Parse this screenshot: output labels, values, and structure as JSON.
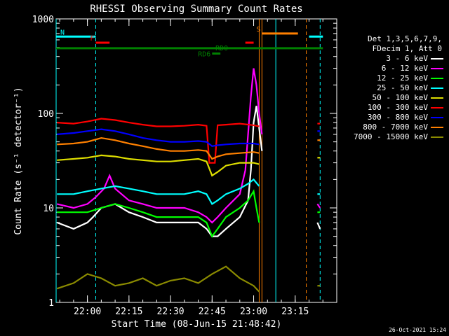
{
  "chart_data": {
    "type": "line",
    "title": "RHESSI Observing Summary Count Rates",
    "xlabel": "Start Time (08-Jun-15 21:48:42)",
    "ylabel": "Count Rate (s⁻¹ detector⁻¹)",
    "yscale": "log",
    "ylim": [
      1,
      1000
    ],
    "xlim": [
      "21:48:42",
      "23:30:00"
    ],
    "x_ticks": [
      "22:00",
      "22:15",
      "22:30",
      "22:45",
      "23:00",
      "23:15"
    ],
    "y_ticks": [
      "1",
      "10",
      "100",
      "1000"
    ],
    "timestamp": "26-Oct-2021 15:24",
    "legend_header": [
      "Det 1,3,5,6,7,9,",
      "FDecim 1, Att 0"
    ],
    "series": [
      {
        "name": "3 - 6 keV",
        "color": "#ffffff",
        "segments": [
          [
            [
              "21:49",
              7
            ],
            [
              "21:55",
              6
            ],
            [
              "22:00",
              7
            ],
            [
              "22:02",
              8
            ],
            [
              "22:05",
              10
            ],
            [
              "22:10",
              11
            ],
            [
              "22:15",
              9
            ],
            [
              "22:20",
              8
            ],
            [
              "22:25",
              7
            ],
            [
              "22:30",
              7
            ],
            [
              "22:35",
              7
            ],
            [
              "22:40",
              7
            ],
            [
              "22:43",
              6
            ],
            [
              "22:45",
              5
            ],
            [
              "22:47",
              5
            ],
            [
              "22:50",
              6
            ],
            [
              "22:55",
              8
            ],
            [
              "22:58",
              12
            ],
            [
              "22:59",
              25
            ],
            [
              "23:00",
              80
            ],
            [
              "23:01",
              120
            ],
            [
              "23:02",
              70
            ],
            [
              "23:03",
              40
            ]
          ],
          [
            [
              "23:23",
              7
            ],
            [
              "23:24",
              6
            ]
          ]
        ]
      },
      {
        "name": "6 - 12 keV",
        "color": "#ff00ff",
        "segments": [
          [
            [
              "21:49",
              11
            ],
            [
              "21:55",
              10
            ],
            [
              "22:00",
              11
            ],
            [
              "22:03",
              13
            ],
            [
              "22:06",
              16
            ],
            [
              "22:08",
              22
            ],
            [
              "22:10",
              16
            ],
            [
              "22:15",
              12
            ],
            [
              "22:20",
              11
            ],
            [
              "22:25",
              10
            ],
            [
              "22:30",
              10
            ],
            [
              "22:35",
              10
            ],
            [
              "22:40",
              9
            ],
            [
              "22:43",
              8
            ],
            [
              "22:45",
              7
            ],
            [
              "22:47",
              8
            ],
            [
              "22:50",
              10
            ],
            [
              "22:55",
              14
            ],
            [
              "22:57",
              25
            ],
            [
              "22:58",
              60
            ],
            [
              "22:59",
              150
            ],
            [
              "23:00",
              300
            ],
            [
              "23:01",
              200
            ],
            [
              "23:02",
              100
            ],
            [
              "23:03",
              60
            ]
          ],
          [
            [
              "23:23",
              11
            ],
            [
              "23:24",
              10
            ]
          ]
        ]
      },
      {
        "name": "12 - 25 keV",
        "color": "#00ff00",
        "segments": [
          [
            [
              "21:49",
              9
            ],
            [
              "21:55",
              9
            ],
            [
              "22:00",
              9
            ],
            [
              "22:05",
              10
            ],
            [
              "22:10",
              11
            ],
            [
              "22:15",
              10
            ],
            [
              "22:20",
              9
            ],
            [
              "22:25",
              8
            ],
            [
              "22:30",
              8
            ],
            [
              "22:35",
              8
            ],
            [
              "22:40",
              8
            ],
            [
              "22:43",
              7
            ],
            [
              "22:45",
              5
            ],
            [
              "22:47",
              6
            ],
            [
              "22:50",
              8
            ],
            [
              "22:55",
              10
            ],
            [
              "22:58",
              12
            ],
            [
              "23:00",
              15
            ],
            [
              "23:01",
              10
            ],
            [
              "23:02",
              7
            ]
          ],
          [
            [
              "23:23",
              9
            ],
            [
              "23:24",
              9
            ]
          ]
        ]
      },
      {
        "name": "25 - 50 keV",
        "color": "#00ffff",
        "segments": [
          [
            [
              "21:49",
              14
            ],
            [
              "21:55",
              14
            ],
            [
              "22:00",
              15
            ],
            [
              "22:05",
              16
            ],
            [
              "22:10",
              17
            ],
            [
              "22:15",
              16
            ],
            [
              "22:20",
              15
            ],
            [
              "22:25",
              14
            ],
            [
              "22:30",
              14
            ],
            [
              "22:35",
              14
            ],
            [
              "22:40",
              15
            ],
            [
              "22:43",
              14
            ],
            [
              "22:45",
              11
            ],
            [
              "22:47",
              12
            ],
            [
              "22:50",
              14
            ],
            [
              "22:55",
              16
            ],
            [
              "22:58",
              18
            ],
            [
              "23:00",
              20
            ],
            [
              "23:02",
              17
            ]
          ],
          [
            [
              "23:23",
              14
            ],
            [
              "23:24",
              14
            ]
          ]
        ]
      },
      {
        "name": "50 - 100 keV",
        "color": "#dddd00",
        "segments": [
          [
            [
              "21:49",
              32
            ],
            [
              "21:55",
              33
            ],
            [
              "22:00",
              34
            ],
            [
              "22:05",
              36
            ],
            [
              "22:10",
              35
            ],
            [
              "22:15",
              33
            ],
            [
              "22:20",
              32
            ],
            [
              "22:25",
              31
            ],
            [
              "22:30",
              31
            ],
            [
              "22:35",
              32
            ],
            [
              "22:40",
              33
            ],
            [
              "22:43",
              31
            ],
            [
              "22:45",
              22
            ],
            [
              "22:47",
              24
            ],
            [
              "22:50",
              28
            ],
            [
              "22:55",
              30
            ],
            [
              "23:00",
              30
            ],
            [
              "23:02",
              29
            ]
          ],
          [
            [
              "23:23",
              34
            ],
            [
              "23:24",
              34
            ]
          ]
        ]
      },
      {
        "name": "100 - 300 keV",
        "color": "#ff0000",
        "segments": [
          [
            [
              "21:49",
              80
            ],
            [
              "21:55",
              78
            ],
            [
              "22:00",
              82
            ],
            [
              "22:05",
              88
            ],
            [
              "22:10",
              85
            ],
            [
              "22:15",
              80
            ],
            [
              "22:20",
              76
            ],
            [
              "22:25",
              73
            ],
            [
              "22:30",
              73
            ],
            [
              "22:35",
              74
            ],
            [
              "22:40",
              76
            ],
            [
              "22:43",
              74
            ],
            [
              "22:44",
              30
            ],
            [
              "22:46",
              30
            ],
            [
              "22:47",
              75
            ],
            [
              "22:50",
              76
            ],
            [
              "22:55",
              78
            ],
            [
              "23:00",
              75
            ],
            [
              "23:02",
              73
            ]
          ],
          [
            [
              "23:23",
              78
            ],
            [
              "23:24",
              78
            ]
          ]
        ]
      },
      {
        "name": "300 - 800 keV",
        "color": "#0000ff",
        "segments": [
          [
            [
              "21:49",
              60
            ],
            [
              "21:55",
              62
            ],
            [
              "22:00",
              65
            ],
            [
              "22:05",
              68
            ],
            [
              "22:10",
              65
            ],
            [
              "22:15",
              60
            ],
            [
              "22:20",
              55
            ],
            [
              "22:25",
              52
            ],
            [
              "22:30",
              50
            ],
            [
              "22:35",
              50
            ],
            [
              "22:40",
              51
            ],
            [
              "22:43",
              50
            ],
            [
              "22:45",
              45
            ],
            [
              "22:47",
              46
            ],
            [
              "22:50",
              47
            ],
            [
              "22:55",
              48
            ],
            [
              "23:00",
              48
            ],
            [
              "23:02",
              47
            ]
          ],
          [
            [
              "23:23",
              65
            ],
            [
              "23:24",
              65
            ]
          ]
        ]
      },
      {
        "name": "800 - 7000 keV",
        "color": "#ff8000",
        "segments": [
          [
            [
              "21:49",
              47
            ],
            [
              "21:55",
              48
            ],
            [
              "22:00",
              50
            ],
            [
              "22:05",
              55
            ],
            [
              "22:10",
              52
            ],
            [
              "22:15",
              48
            ],
            [
              "22:20",
              45
            ],
            [
              "22:25",
              42
            ],
            [
              "22:30",
              40
            ],
            [
              "22:35",
              40
            ],
            [
              "22:40",
              41
            ],
            [
              "22:43",
              40
            ],
            [
              "22:45",
              33
            ],
            [
              "22:47",
              35
            ],
            [
              "22:50",
              37
            ],
            [
              "22:55",
              38
            ],
            [
              "23:00",
              39
            ],
            [
              "23:02",
              38
            ]
          ],
          [
            [
              "23:23",
              52
            ],
            [
              "23:24",
              52
            ]
          ]
        ]
      },
      {
        "name": "7000 - 15000 keV",
        "color": "#8b8b00",
        "segments": [
          [
            [
              "21:49",
              1.4
            ],
            [
              "21:55",
              1.6
            ],
            [
              "22:00",
              2.0
            ],
            [
              "22:05",
              1.8
            ],
            [
              "22:10",
              1.5
            ],
            [
              "22:15",
              1.6
            ],
            [
              "22:20",
              1.8
            ],
            [
              "22:25",
              1.5
            ],
            [
              "22:30",
              1.7
            ],
            [
              "22:35",
              1.8
            ],
            [
              "22:40",
              1.6
            ],
            [
              "22:45",
              2.0
            ],
            [
              "22:50",
              2.4
            ],
            [
              "22:55",
              1.8
            ],
            [
              "23:00",
              1.5
            ],
            [
              "23:02",
              1.3
            ]
          ],
          [
            [
              "23:23",
              1.5
            ],
            [
              "23:24",
              1.5
            ]
          ]
        ]
      }
    ],
    "flag_bars": [
      {
        "label": "N",
        "color": "#00ffff",
        "y": 650,
        "ranges": [
          [
            "21:48:42",
            "22:03"
          ],
          [
            "23:20",
            "23:25"
          ]
        ]
      },
      {
        "label": "F",
        "color": "#ff0000",
        "y": 560,
        "ranges": [
          [
            "22:03",
            "22:08"
          ],
          [
            "22:57",
            "23:00"
          ]
        ]
      },
      {
        "label": "",
        "color": "#008000",
        "y": 490,
        "ranges": [
          [
            "21:48:42",
            "23:25"
          ]
        ]
      },
      {
        "label": "RD0",
        "color": "#008000",
        "y": 490,
        "ranges": []
      },
      {
        "label": "RD6",
        "color": "#008000",
        "y": 430,
        "ranges": [
          [
            "22:45",
            "22:48"
          ]
        ]
      },
      {
        "label": "S",
        "color": "#ff8000",
        "y": 700,
        "ranges": [
          [
            "23:03",
            "23:16"
          ]
        ]
      }
    ],
    "vlines": [
      {
        "x": "21:48:42",
        "color": "#00ffff",
        "style": "solid"
      },
      {
        "x": "22:03",
        "color": "#00ffff",
        "style": "dashed"
      },
      {
        "x": "23:02",
        "color": "#ff8000",
        "style": "solid"
      },
      {
        "x": "23:03",
        "color": "#ff8000",
        "style": "solid"
      },
      {
        "x": "23:08",
        "color": "#00ffff",
        "style": "solid"
      },
      {
        "x": "23:19",
        "color": "#ff8000",
        "style": "dashed"
      },
      {
        "x": "23:24",
        "color": "#00ffff",
        "style": "dashed"
      }
    ]
  }
}
